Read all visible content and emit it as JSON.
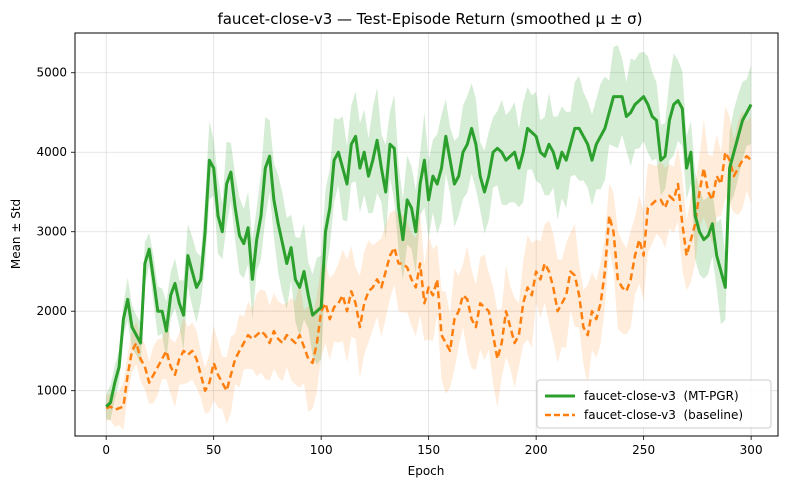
{
  "chart_data": {
    "type": "line",
    "title": "faucet-close-v3 — Test-Episode Return (smoothed μ ± σ)",
    "xlabel": "Epoch",
    "ylabel": "Mean ± Std",
    "xlim": [
      -14.5,
      312.5
    ],
    "ylim": [
      430,
      5500
    ],
    "xticks": [
      0,
      50,
      100,
      150,
      200,
      250,
      300
    ],
    "yticks": [
      1000,
      2000,
      3000,
      4000,
      5000
    ],
    "grid": true,
    "legend_position": "lower-right",
    "series": [
      {
        "name": "faucet-close-v3  (MT-PGR)",
        "color": "#2ca02c",
        "style": "solid",
        "x": [
          0,
          2,
          4,
          6,
          8,
          10,
          12,
          14,
          16,
          18,
          20,
          22,
          24,
          26,
          28,
          30,
          32,
          34,
          36,
          38,
          40,
          42,
          44,
          46,
          48,
          50,
          52,
          54,
          56,
          58,
          60,
          62,
          64,
          66,
          68,
          70,
          72,
          74,
          76,
          78,
          80,
          82,
          84,
          86,
          88,
          90,
          92,
          94,
          96,
          98,
          100,
          102,
          104,
          106,
          108,
          110,
          112,
          114,
          116,
          118,
          120,
          122,
          124,
          126,
          128,
          130,
          132,
          134,
          136,
          138,
          140,
          142,
          144,
          146,
          148,
          150,
          152,
          154,
          156,
          158,
          160,
          162,
          164,
          166,
          168,
          170,
          172,
          174,
          176,
          178,
          180,
          182,
          184,
          186,
          188,
          190,
          192,
          194,
          196,
          198,
          200,
          202,
          204,
          206,
          208,
          210,
          212,
          214,
          216,
          218,
          220,
          222,
          224,
          226,
          228,
          230,
          232,
          234,
          236,
          238,
          240,
          242,
          244,
          246,
          248,
          250,
          252,
          254,
          256,
          258,
          260,
          262,
          264,
          266,
          268,
          270,
          272,
          274,
          276,
          278,
          280,
          282,
          284,
          286,
          288,
          290,
          292,
          294,
          296,
          298,
          300
        ],
        "y": [
          800,
          850,
          1100,
          1300,
          1900,
          2150,
          1800,
          1700,
          1600,
          2600,
          2780,
          2400,
          2000,
          2000,
          1750,
          2200,
          2350,
          2100,
          1950,
          2700,
          2500,
          2300,
          2400,
          3000,
          3900,
          3800,
          3200,
          3000,
          3600,
          3750,
          3300,
          2950,
          2850,
          3050,
          2400,
          2900,
          3200,
          3800,
          3950,
          3400,
          3100,
          2850,
          2600,
          2800,
          2400,
          2300,
          2500,
          2200,
          1950,
          2000,
          2050,
          3000,
          3300,
          3900,
          4000,
          3800,
          3600,
          4100,
          4200,
          3800,
          4000,
          3700,
          3900,
          4150,
          3800,
          3500,
          4100,
          4050,
          3300,
          2900,
          3400,
          3300,
          3000,
          3600,
          3900,
          3400,
          3700,
          3600,
          3800,
          4200,
          3900,
          3600,
          3700,
          4000,
          4100,
          4300,
          4100,
          3700,
          3500,
          3700,
          4000,
          4050,
          4000,
          3900,
          3950,
          4000,
          3800,
          4000,
          4300,
          4250,
          4200,
          4000,
          3950,
          4100,
          4000,
          3800,
          4000,
          3900,
          4100,
          4300,
          4300,
          4200,
          4100,
          3900,
          4100,
          4200,
          4300,
          4500,
          4700,
          4700,
          4700,
          4450,
          4500,
          4600,
          4650,
          4700,
          4600,
          4450,
          4400,
          3900,
          3950,
          4400,
          4600,
          4650,
          4550,
          3800,
          4000,
          3200,
          3000,
          2900,
          2950,
          3100,
          2700,
          2500,
          2300,
          3800,
          4000,
          4200,
          4400,
          4500,
          4600
        ]
      },
      {
        "name": "faucet-close-v3  (baseline)",
        "color": "#ff7f0e",
        "style": "dashed",
        "x": [
          0,
          2,
          4,
          6,
          8,
          10,
          12,
          14,
          16,
          18,
          20,
          22,
          24,
          26,
          28,
          30,
          32,
          34,
          36,
          38,
          40,
          42,
          44,
          46,
          48,
          50,
          52,
          54,
          56,
          58,
          60,
          62,
          64,
          66,
          68,
          70,
          72,
          74,
          76,
          78,
          80,
          82,
          84,
          86,
          88,
          90,
          92,
          94,
          96,
          98,
          100,
          102,
          104,
          106,
          108,
          110,
          112,
          114,
          116,
          118,
          120,
          122,
          124,
          126,
          128,
          130,
          132,
          134,
          136,
          138,
          140,
          142,
          144,
          146,
          148,
          150,
          152,
          154,
          156,
          158,
          160,
          162,
          164,
          166,
          168,
          170,
          172,
          174,
          176,
          178,
          180,
          182,
          184,
          186,
          188,
          190,
          192,
          194,
          196,
          198,
          200,
          202,
          204,
          206,
          208,
          210,
          212,
          214,
          216,
          218,
          220,
          222,
          224,
          226,
          228,
          230,
          232,
          234,
          236,
          238,
          240,
          242,
          244,
          246,
          248,
          250,
          252,
          254,
          256,
          258,
          260,
          262,
          264,
          266,
          268,
          270,
          272,
          274,
          276,
          278,
          280,
          282,
          284,
          286,
          288,
          290,
          292,
          294,
          296,
          298,
          300
        ],
        "y": [
          780,
          800,
          760,
          780,
          800,
          1200,
          1500,
          1600,
          1400,
          1300,
          1100,
          1200,
          1300,
          1400,
          1500,
          1300,
          1200,
          1400,
          1500,
          1450,
          1500,
          1400,
          1200,
          1000,
          1100,
          1350,
          1200,
          1100,
          1000,
          1200,
          1400,
          1500,
          1600,
          1700,
          1650,
          1700,
          1750,
          1700,
          1600,
          1750,
          1650,
          1600,
          1700,
          1650,
          1600,
          1700,
          1550,
          1400,
          1350,
          1600,
          2000,
          2100,
          1900,
          2050,
          2100,
          2200,
          2000,
          2250,
          2100,
          1800,
          2100,
          2250,
          2300,
          2400,
          2300,
          2500,
          2700,
          2800,
          2600,
          2600,
          2550,
          2400,
          2300,
          2600,
          2100,
          2300,
          2200,
          2400,
          1700,
          1600,
          1500,
          1900,
          2000,
          2200,
          2150,
          1900,
          1800,
          2100,
          2050,
          2000,
          1700,
          1400,
          1600,
          2000,
          1800,
          1600,
          1700,
          2100,
          2300,
          2200,
          2500,
          2400,
          2600,
          2500,
          2300,
          2000,
          2100,
          2200,
          2500,
          2450,
          2200,
          1800,
          1700,
          2000,
          1900,
          2100,
          2500,
          3200,
          3000,
          2400,
          2300,
          2250,
          2400,
          2700,
          2900,
          2700,
          3300,
          3350,
          3400,
          3400,
          3300,
          3450,
          3400,
          3600,
          3100,
          2700,
          2900,
          3100,
          3500,
          3800,
          3500,
          3400,
          3700,
          3600,
          4000,
          3900,
          3700,
          3800,
          3900,
          3950,
          3900
        ]
      }
    ]
  }
}
